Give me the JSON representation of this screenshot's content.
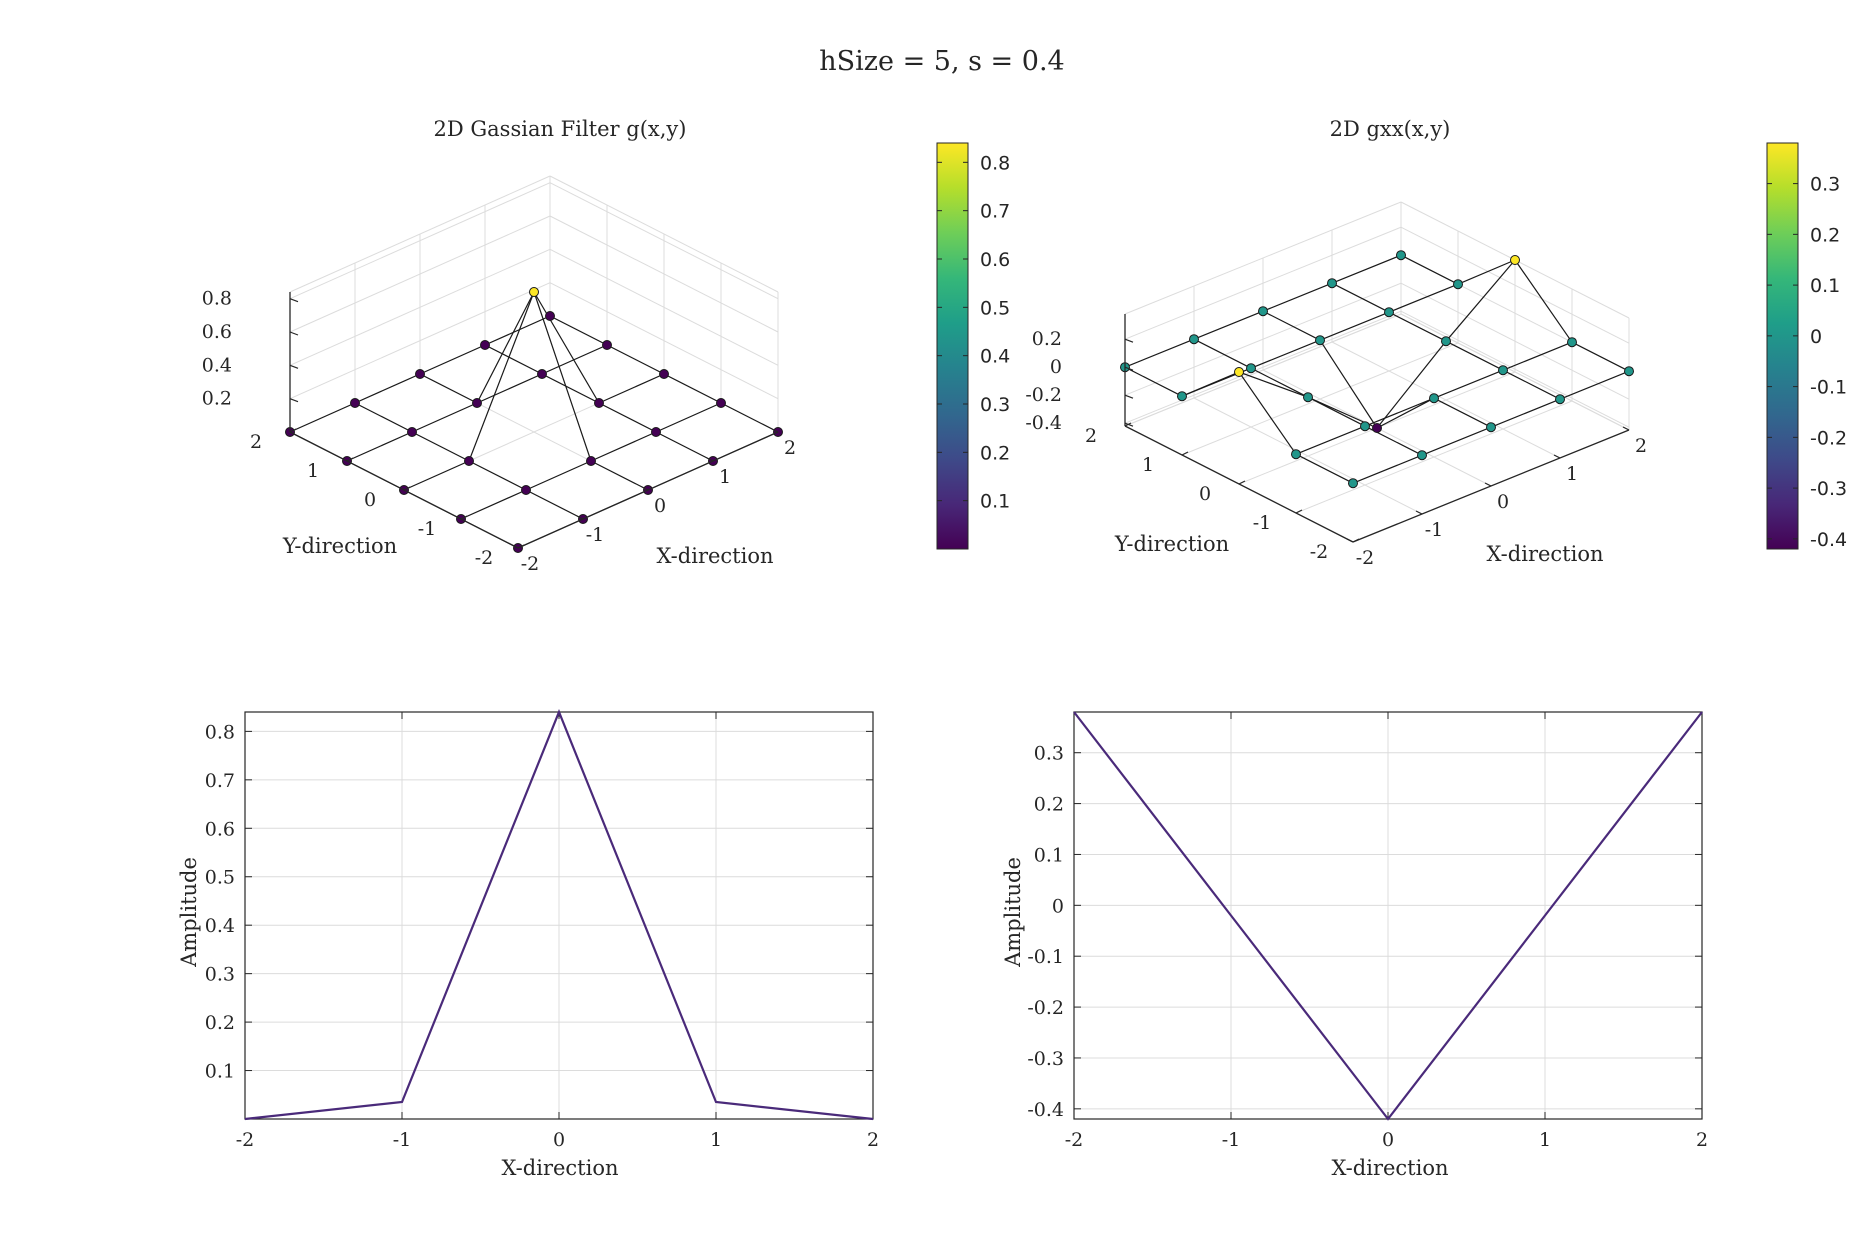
{
  "figure": {
    "title": "hSize = 5, s = 0.4"
  },
  "colors": {
    "line": "#4a2a7a",
    "marker_edge": "#1a1a1a",
    "axis": "#262626",
    "grid": "#dcdcdc",
    "viridis": [
      "#440154",
      "#482878",
      "#3e4a89",
      "#31688e",
      "#26828e",
      "#1f9e89",
      "#35b779",
      "#6ece58",
      "#b5de2b",
      "#fde725"
    ]
  },
  "chart_data": [
    {
      "type": "surface3d",
      "title": "2D Gassian Filter g(x,y)",
      "xlabel": "X-direction",
      "ylabel": "Y-direction",
      "x": [
        -2,
        -1,
        0,
        1,
        2
      ],
      "y": [
        -2,
        -1,
        0,
        1,
        2
      ],
      "z": [
        [
          0.0,
          0.0,
          0.0,
          0.0,
          0.0
        ],
        [
          0.0,
          0.0,
          0.0,
          0.0,
          0.0
        ],
        [
          0.0,
          0.0,
          0.84,
          0.0,
          0.0
        ],
        [
          0.0,
          0.0,
          0.0,
          0.0,
          0.0
        ],
        [
          0.0,
          0.0,
          0.0,
          0.0,
          0.0
        ]
      ],
      "zlim": [
        0,
        0.84
      ],
      "zticks": [
        "0.2",
        "0.4",
        "0.6",
        "0.8"
      ],
      "xticks": [
        "-2",
        "-1",
        "0",
        "1",
        "2"
      ],
      "yticks": [
        "-2",
        "-1",
        "0",
        "1",
        "2"
      ],
      "colorbar": {
        "range": [
          0,
          0.84
        ],
        "ticks": [
          "0.1",
          "0.2",
          "0.3",
          "0.4",
          "0.5",
          "0.6",
          "0.7",
          "0.8"
        ]
      }
    },
    {
      "type": "surface3d",
      "title": "2D gxx(x,y)",
      "xlabel": "X-direction",
      "ylabel": "Y-direction",
      "x": [
        -2,
        -1,
        0,
        1,
        2
      ],
      "y": [
        -2,
        -1,
        0,
        1,
        2
      ],
      "z": [
        [
          0.0,
          0.0,
          0.0,
          0.0,
          0.0
        ],
        [
          0.0,
          0.0,
          0.0,
          0.0,
          0.0
        ],
        [
          0.38,
          0.0,
          -0.42,
          0.0,
          0.38
        ],
        [
          0.0,
          0.0,
          0.0,
          0.0,
          0.0
        ],
        [
          0.0,
          0.0,
          0.0,
          0.0,
          0.0
        ]
      ],
      "zlim": [
        -0.42,
        0.38
      ],
      "zticks": [
        "-0.4",
        "-0.2",
        "0",
        "0.2"
      ],
      "xticks": [
        "-2",
        "-1",
        "0",
        "1",
        "2"
      ],
      "yticks": [
        "-2",
        "-1",
        "0",
        "1",
        "2"
      ],
      "colorbar": {
        "range": [
          -0.42,
          0.38
        ],
        "ticks": [
          "-0.4",
          "-0.3",
          "-0.2",
          "-0.1",
          "0",
          "0.1",
          "0.2",
          "0.3"
        ]
      }
    },
    {
      "type": "line",
      "xlabel": "X-direction",
      "ylabel": "Amplitude",
      "x": [
        -2,
        -1,
        0,
        1,
        2
      ],
      "values": [
        0.0,
        0.035,
        0.84,
        0.035,
        0.0
      ],
      "xlim": [
        -2,
        2
      ],
      "ylim": [
        0,
        0.84
      ],
      "xticks": [
        "-2",
        "-1",
        "0",
        "1",
        "2"
      ],
      "yticks": [
        "0.1",
        "0.2",
        "0.3",
        "0.4",
        "0.5",
        "0.6",
        "0.7",
        "0.8"
      ],
      "grid": true
    },
    {
      "type": "line",
      "xlabel": "X-direction",
      "ylabel": "Amplitude",
      "x": [
        -2,
        -1,
        0,
        1,
        2
      ],
      "values": [
        0.38,
        -0.02,
        -0.42,
        -0.02,
        0.38
      ],
      "xlim": [
        -2,
        2
      ],
      "ylim": [
        -0.42,
        0.38
      ],
      "xticks": [
        "-2",
        "-1",
        "0",
        "1",
        "2"
      ],
      "yticks": [
        "-0.4",
        "-0.3",
        "-0.2",
        "-0.1",
        "0",
        "0.1",
        "0.2",
        "0.3"
      ],
      "grid": true
    }
  ]
}
